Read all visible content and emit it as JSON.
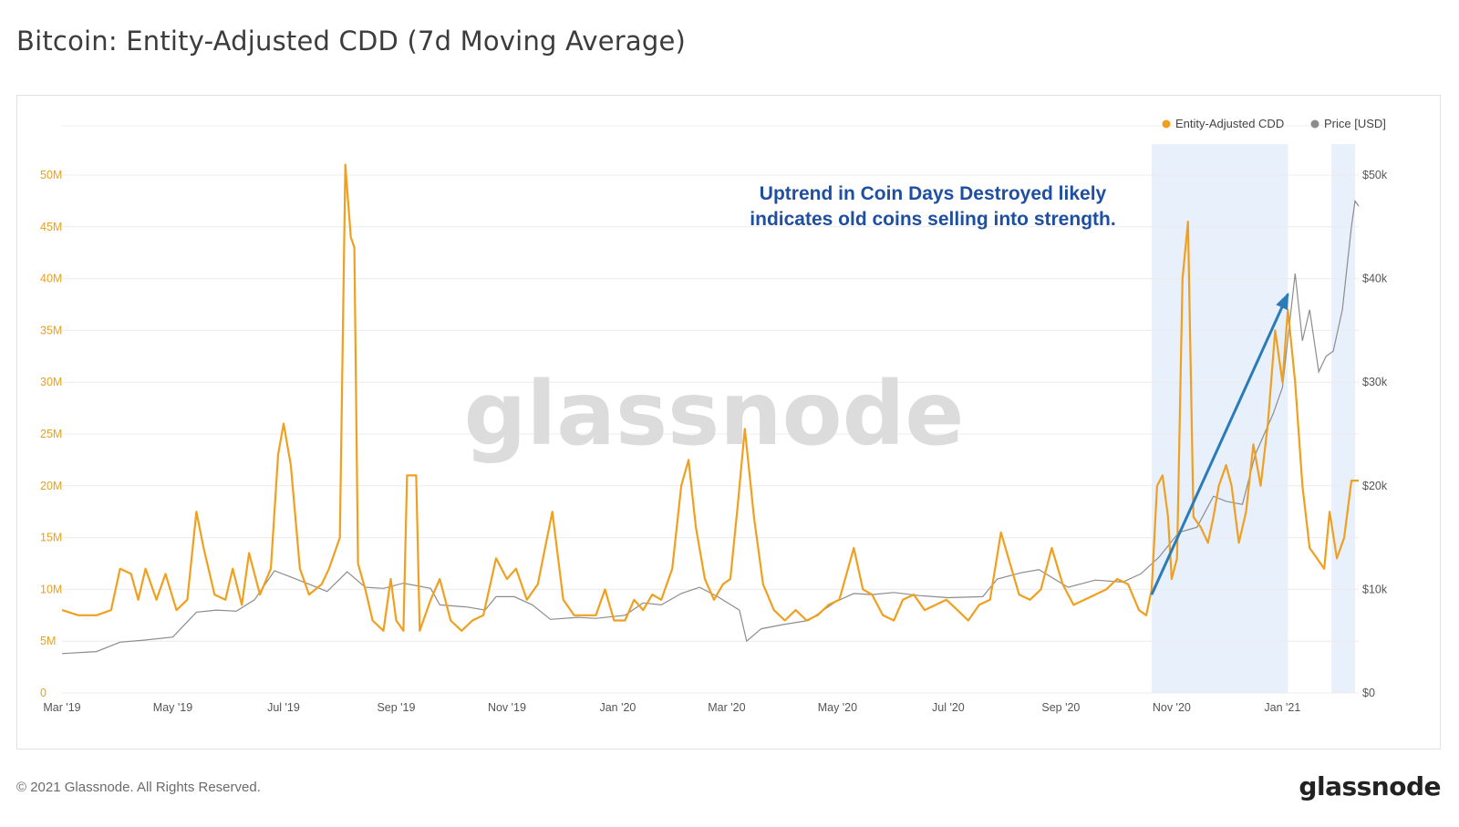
{
  "header": {
    "title": "Bitcoin: Entity-Adjusted CDD (7d Moving Average)"
  },
  "footer": {
    "copyright": "© 2021 Glassnode. All Rights Reserved.",
    "logo": "glassnode"
  },
  "colors": {
    "cdd": "#f0a01e",
    "price": "#8c8c8c",
    "highlight": "#e8f0fc",
    "arrow": "#2a7bb8",
    "annotation": "#1f4fa0",
    "left_axis": "#e8a020",
    "right_axis": "#555555"
  },
  "chart_data": {
    "type": "line",
    "title": "Bitcoin: Entity-Adjusted CDD (7d Moving Average)",
    "watermark": "glassnode",
    "x_ticks": [
      "Mar '19",
      "May '19",
      "Jul '19",
      "Sep '19",
      "Nov '19",
      "Jan '20",
      "Mar '20",
      "May '20",
      "Jul '20",
      "Sep '20",
      "Nov '20",
      "Jan '21"
    ],
    "x_range": [
      "2019-03-01",
      "2021-02-12"
    ],
    "y_left": {
      "label": "Entity-Adjusted CDD",
      "ticks": [
        "0",
        "5M",
        "10M",
        "15M",
        "20M",
        "25M",
        "30M",
        "35M",
        "40M",
        "45M",
        "50M"
      ],
      "range": [
        0,
        55
      ]
    },
    "y_right": {
      "label": "Price [USD]",
      "ticks": [
        "$0",
        "$10k",
        "$20k",
        "$30k",
        "$40k",
        "$50k"
      ],
      "range": [
        0,
        55000
      ]
    },
    "legend": [
      {
        "name": "Entity-Adjusted CDD",
        "color": "#f0a01e"
      },
      {
        "name": "Price [USD]",
        "color": "#8c8c8c"
      }
    ],
    "annotation": {
      "lines": [
        "Uptrend in Coin Days Destroyed likely",
        "indicates old coins selling into strength."
      ]
    },
    "highlight_ranges": [
      [
        "2020-10-21",
        "2021-01-04"
      ],
      [
        "2021-01-28",
        "2021-02-10"
      ]
    ],
    "arrow": {
      "from": [
        "2020-10-21",
        9.5
      ],
      "to": [
        "2021-01-04",
        38.5
      ]
    },
    "series": [
      {
        "name": "Entity-Adjusted CDD",
        "unit": "M",
        "points": [
          [
            "2019-03-01",
            8.0
          ],
          [
            "2019-03-10",
            7.5
          ],
          [
            "2019-03-20",
            7.5
          ],
          [
            "2019-03-28",
            8.0
          ],
          [
            "2019-04-02",
            12.0
          ],
          [
            "2019-04-08",
            11.5
          ],
          [
            "2019-04-12",
            9.0
          ],
          [
            "2019-04-16",
            12.0
          ],
          [
            "2019-04-22",
            9.0
          ],
          [
            "2019-04-27",
            11.5
          ],
          [
            "2019-05-03",
            8.0
          ],
          [
            "2019-05-09",
            9.0
          ],
          [
            "2019-05-14",
            17.5
          ],
          [
            "2019-05-18",
            14.0
          ],
          [
            "2019-05-24",
            9.5
          ],
          [
            "2019-05-30",
            9.0
          ],
          [
            "2019-06-03",
            12.0
          ],
          [
            "2019-06-08",
            8.5
          ],
          [
            "2019-06-12",
            13.5
          ],
          [
            "2019-06-18",
            9.5
          ],
          [
            "2019-06-24",
            12.0
          ],
          [
            "2019-06-28",
            23.0
          ],
          [
            "2019-07-01",
            26.0
          ],
          [
            "2019-07-05",
            22.0
          ],
          [
            "2019-07-10",
            12.0
          ],
          [
            "2019-07-15",
            9.5
          ],
          [
            "2019-07-22",
            10.5
          ],
          [
            "2019-07-26",
            12.0
          ],
          [
            "2019-08-01",
            15.0
          ],
          [
            "2019-08-04",
            51.0
          ],
          [
            "2019-08-07",
            44.0
          ],
          [
            "2019-08-09",
            43.0
          ],
          [
            "2019-08-11",
            12.5
          ],
          [
            "2019-08-15",
            10.0
          ],
          [
            "2019-08-19",
            7.0
          ],
          [
            "2019-08-25",
            6.0
          ],
          [
            "2019-08-29",
            11.0
          ],
          [
            "2019-09-01",
            7.0
          ],
          [
            "2019-09-05",
            6.0
          ],
          [
            "2019-09-07",
            21.0
          ],
          [
            "2019-09-12",
            21.0
          ],
          [
            "2019-09-14",
            6.0
          ],
          [
            "2019-09-20",
            9.0
          ],
          [
            "2019-09-25",
            11.0
          ],
          [
            "2019-10-01",
            7.0
          ],
          [
            "2019-10-07",
            6.0
          ],
          [
            "2019-10-13",
            7.0
          ],
          [
            "2019-10-19",
            7.5
          ],
          [
            "2019-10-26",
            13.0
          ],
          [
            "2019-11-01",
            11.0
          ],
          [
            "2019-11-06",
            12.0
          ],
          [
            "2019-11-12",
            9.0
          ],
          [
            "2019-11-18",
            10.5
          ],
          [
            "2019-11-26",
            17.5
          ],
          [
            "2019-12-02",
            9.0
          ],
          [
            "2019-12-08",
            7.5
          ],
          [
            "2019-12-14",
            7.5
          ],
          [
            "2019-12-20",
            7.5
          ],
          [
            "2019-12-25",
            10.0
          ],
          [
            "2019-12-30",
            7.0
          ],
          [
            "2020-01-05",
            7.0
          ],
          [
            "2020-01-10",
            9.0
          ],
          [
            "2020-01-15",
            8.0
          ],
          [
            "2020-01-20",
            9.5
          ],
          [
            "2020-01-25",
            9.0
          ],
          [
            "2020-01-31",
            12.0
          ],
          [
            "2020-02-05",
            20.0
          ],
          [
            "2020-02-09",
            22.5
          ],
          [
            "2020-02-13",
            16.0
          ],
          [
            "2020-02-18",
            11.0
          ],
          [
            "2020-02-23",
            9.0
          ],
          [
            "2020-02-28",
            10.5
          ],
          [
            "2020-03-03",
            11.0
          ],
          [
            "2020-03-07",
            18.0
          ],
          [
            "2020-03-11",
            25.5
          ],
          [
            "2020-03-16",
            17.0
          ],
          [
            "2020-03-21",
            10.5
          ],
          [
            "2020-03-27",
            8.0
          ],
          [
            "2020-04-02",
            7.0
          ],
          [
            "2020-04-08",
            8.0
          ],
          [
            "2020-04-14",
            7.0
          ],
          [
            "2020-04-20",
            7.5
          ],
          [
            "2020-04-26",
            8.5
          ],
          [
            "2020-05-02",
            9.0
          ],
          [
            "2020-05-10",
            14.0
          ],
          [
            "2020-05-15",
            10.0
          ],
          [
            "2020-05-20",
            9.5
          ],
          [
            "2020-05-26",
            7.5
          ],
          [
            "2020-06-01",
            7.0
          ],
          [
            "2020-06-06",
            9.0
          ],
          [
            "2020-06-12",
            9.5
          ],
          [
            "2020-06-18",
            8.0
          ],
          [
            "2020-06-24",
            8.5
          ],
          [
            "2020-06-30",
            9.0
          ],
          [
            "2020-07-06",
            8.0
          ],
          [
            "2020-07-12",
            7.0
          ],
          [
            "2020-07-18",
            8.5
          ],
          [
            "2020-07-24",
            9.0
          ],
          [
            "2020-07-30",
            15.5
          ],
          [
            "2020-08-04",
            12.5
          ],
          [
            "2020-08-09",
            9.5
          ],
          [
            "2020-08-15",
            9.0
          ],
          [
            "2020-08-21",
            10.0
          ],
          [
            "2020-08-27",
            14.0
          ],
          [
            "2020-09-02",
            10.5
          ],
          [
            "2020-09-08",
            8.5
          ],
          [
            "2020-09-14",
            9.0
          ],
          [
            "2020-09-20",
            9.5
          ],
          [
            "2020-09-26",
            10.0
          ],
          [
            "2020-10-02",
            11.0
          ],
          [
            "2020-10-08",
            10.5
          ],
          [
            "2020-10-14",
            8.0
          ],
          [
            "2020-10-18",
            7.5
          ],
          [
            "2020-10-21",
            10.0
          ],
          [
            "2020-10-24",
            20.0
          ],
          [
            "2020-10-27",
            21.0
          ],
          [
            "2020-10-30",
            17.0
          ],
          [
            "2020-11-01",
            11.0
          ],
          [
            "2020-11-04",
            13.0
          ],
          [
            "2020-11-07",
            40.0
          ],
          [
            "2020-11-10",
            45.5
          ],
          [
            "2020-11-13",
            17.0
          ],
          [
            "2020-11-17",
            16.0
          ],
          [
            "2020-11-21",
            14.5
          ],
          [
            "2020-11-24",
            17.0
          ],
          [
            "2020-11-27",
            20.0
          ],
          [
            "2020-12-01",
            22.0
          ],
          [
            "2020-12-04",
            20.0
          ],
          [
            "2020-12-08",
            14.5
          ],
          [
            "2020-12-12",
            17.5
          ],
          [
            "2020-12-16",
            24.0
          ],
          [
            "2020-12-20",
            20.0
          ],
          [
            "2020-12-24",
            26.0
          ],
          [
            "2020-12-28",
            35.0
          ],
          [
            "2021-01-01",
            30.0
          ],
          [
            "2021-01-04",
            37.0
          ],
          [
            "2021-01-08",
            30.0
          ],
          [
            "2021-01-12",
            20.0
          ],
          [
            "2021-01-16",
            14.0
          ],
          [
            "2021-01-20",
            13.0
          ],
          [
            "2021-01-24",
            12.0
          ],
          [
            "2021-01-27",
            17.5
          ],
          [
            "2021-01-31",
            13.0
          ],
          [
            "2021-02-04",
            15.0
          ],
          [
            "2021-02-08",
            20.5
          ],
          [
            "2021-02-12",
            20.5
          ]
        ]
      },
      {
        "name": "Price [USD]",
        "unit": "USD",
        "points": [
          [
            "2019-03-01",
            3800
          ],
          [
            "2019-03-20",
            4000
          ],
          [
            "2019-04-02",
            4900
          ],
          [
            "2019-04-15",
            5100
          ],
          [
            "2019-05-01",
            5400
          ],
          [
            "2019-05-14",
            7800
          ],
          [
            "2019-05-25",
            8000
          ],
          [
            "2019-06-05",
            7900
          ],
          [
            "2019-06-15",
            9000
          ],
          [
            "2019-06-26",
            11800
          ],
          [
            "2019-07-05",
            11200
          ],
          [
            "2019-07-15",
            10500
          ],
          [
            "2019-07-25",
            9800
          ],
          [
            "2019-08-05",
            11700
          ],
          [
            "2019-08-15",
            10200
          ],
          [
            "2019-08-25",
            10100
          ],
          [
            "2019-09-05",
            10600
          ],
          [
            "2019-09-20",
            10100
          ],
          [
            "2019-09-25",
            8500
          ],
          [
            "2019-10-10",
            8300
          ],
          [
            "2019-10-20",
            8000
          ],
          [
            "2019-10-26",
            9300
          ],
          [
            "2019-11-05",
            9300
          ],
          [
            "2019-11-15",
            8500
          ],
          [
            "2019-11-25",
            7100
          ],
          [
            "2019-12-10",
            7300
          ],
          [
            "2019-12-20",
            7200
          ],
          [
            "2020-01-05",
            7500
          ],
          [
            "2020-01-15",
            8700
          ],
          [
            "2020-01-25",
            8500
          ],
          [
            "2020-02-05",
            9600
          ],
          [
            "2020-02-15",
            10200
          ],
          [
            "2020-02-25",
            9300
          ],
          [
            "2020-03-08",
            8000
          ],
          [
            "2020-03-12",
            5000
          ],
          [
            "2020-03-20",
            6200
          ],
          [
            "2020-04-01",
            6600
          ],
          [
            "2020-04-15",
            7000
          ],
          [
            "2020-04-30",
            8800
          ],
          [
            "2020-05-10",
            9600
          ],
          [
            "2020-05-20",
            9500
          ],
          [
            "2020-06-01",
            9700
          ],
          [
            "2020-06-15",
            9400
          ],
          [
            "2020-07-01",
            9200
          ],
          [
            "2020-07-20",
            9300
          ],
          [
            "2020-07-28",
            11000
          ],
          [
            "2020-08-10",
            11600
          ],
          [
            "2020-08-20",
            11900
          ],
          [
            "2020-09-05",
            10200
          ],
          [
            "2020-09-20",
            10900
          ],
          [
            "2020-10-05",
            10700
          ],
          [
            "2020-10-15",
            11500
          ],
          [
            "2020-10-25",
            13100
          ],
          [
            "2020-11-05",
            15500
          ],
          [
            "2020-11-15",
            16000
          ],
          [
            "2020-11-24",
            19000
          ],
          [
            "2020-12-01",
            18500
          ],
          [
            "2020-12-10",
            18200
          ],
          [
            "2020-12-17",
            23000
          ],
          [
            "2020-12-27",
            27000
          ],
          [
            "2021-01-01",
            29500
          ],
          [
            "2021-01-08",
            40500
          ],
          [
            "2021-01-12",
            34000
          ],
          [
            "2021-01-16",
            37000
          ],
          [
            "2021-01-21",
            31000
          ],
          [
            "2021-01-25",
            32500
          ],
          [
            "2021-01-29",
            33000
          ],
          [
            "2021-02-03",
            37000
          ],
          [
            "2021-02-08",
            45000
          ],
          [
            "2021-02-10",
            47500
          ],
          [
            "2021-02-12",
            47000
          ]
        ]
      }
    ]
  }
}
